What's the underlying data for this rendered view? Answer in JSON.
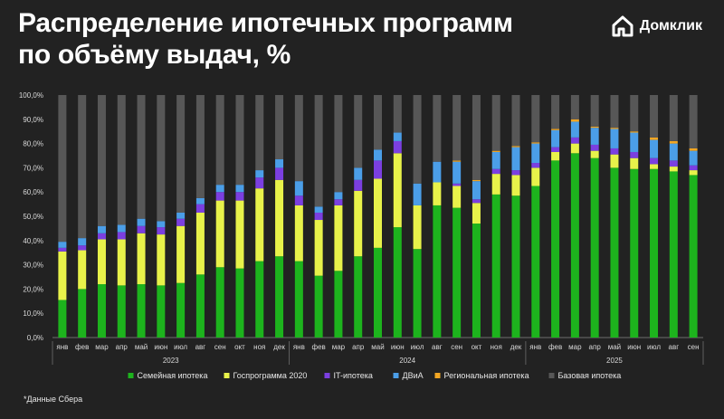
{
  "title_line1": "Распределение ипотечных программ",
  "title_line2": "по объёму выдач, %",
  "brand": "Домклик",
  "footnote": "*Данные Сбера",
  "chart_data": {
    "type": "bar",
    "stacked": true,
    "categories": [
      "янв",
      "фев",
      "мар",
      "апр",
      "май",
      "июн",
      "июл",
      "авг",
      "сен",
      "окт",
      "ноя",
      "дек",
      "янв",
      "фев",
      "мар",
      "апр",
      "май",
      "июн",
      "июл",
      "авг",
      "сен",
      "окт",
      "ноя",
      "дек",
      "янв",
      "фев",
      "мар",
      "апр",
      "май",
      "июн",
      "июл",
      "авг",
      "сен"
    ],
    "year_labels": [
      {
        "label": "2023",
        "from": 0,
        "to": 11
      },
      {
        "label": "2024",
        "from": 12,
        "to": 23
      },
      {
        "label": "2025",
        "from": 24,
        "to": 32
      }
    ],
    "ylim": [
      0,
      100
    ],
    "yticks": [
      "0,0%",
      "10,0%",
      "20,0%",
      "30,0%",
      "40,0%",
      "50,0%",
      "60,0%",
      "70,0%",
      "80,0%",
      "90,0%",
      "100,0%"
    ],
    "legend_position": "bottom",
    "series": [
      {
        "name": "Семейная ипотека",
        "color": "#1db31d",
        "values": [
          15.5,
          20,
          22,
          21.5,
          22,
          21.5,
          22.5,
          26,
          29,
          28.5,
          31.5,
          33.5,
          31.5,
          25.5,
          27.5,
          33.5,
          37,
          45.5,
          36.5,
          54.5,
          53.5,
          47,
          59,
          58.5,
          62.5,
          73,
          76,
          74,
          70,
          69.5,
          69.5,
          68.5,
          67
        ]
      },
      {
        "name": "Госпрограмма 2020",
        "color": "#e8f24a",
        "values": [
          20,
          16,
          18.5,
          19,
          21,
          21,
          23.5,
          25.5,
          27.5,
          28,
          30,
          31.5,
          23,
          23,
          27,
          27,
          28.5,
          30.5,
          18,
          9.5,
          9,
          8.5,
          8.5,
          8.5,
          7.5,
          3.5,
          4,
          3,
          5.5,
          4.5,
          2,
          2,
          2
        ]
      },
      {
        "name": "IT-ипотека",
        "color": "#7b3fe0",
        "values": [
          1.5,
          2,
          2.5,
          3,
          3,
          3,
          3,
          3.5,
          3.5,
          3.5,
          4.5,
          5,
          4,
          3,
          2.5,
          4.5,
          7.5,
          5,
          0,
          0,
          1,
          1.5,
          2,
          2,
          2,
          2,
          2.5,
          2.5,
          2.5,
          2.5,
          2.5,
          2.5,
          2
        ]
      },
      {
        "name": "ДВиА",
        "color": "#4b9ee8",
        "values": [
          2.5,
          3,
          3,
          3,
          3,
          2.5,
          2.5,
          2.5,
          3,
          3,
          3,
          3.5,
          6,
          2.5,
          3,
          5,
          4.5,
          3.5,
          9,
          8.5,
          9,
          7.5,
          7,
          9.5,
          8,
          7,
          6.5,
          7,
          8,
          8,
          7.5,
          7,
          6
        ]
      },
      {
        "name": "Региональная ипотека",
        "color": "#f2a623",
        "values": [
          0,
          0,
          0,
          0,
          0,
          0,
          0,
          0,
          0,
          0,
          0,
          0,
          0,
          0,
          0,
          0,
          0,
          0,
          0,
          0,
          0.5,
          0.5,
          0.5,
          0.5,
          0.5,
          0.5,
          1,
          0.5,
          0.5,
          0.5,
          1,
          1,
          1
        ]
      },
      {
        "name": "Базовая ипотека",
        "color": "#575757",
        "values": [
          60.5,
          59,
          54,
          53.5,
          51,
          52,
          48.5,
          42.5,
          37,
          37,
          31,
          26.5,
          35.5,
          46,
          40,
          30,
          22.5,
          15.5,
          36.5,
          27.5,
          27,
          35,
          23,
          21,
          19.5,
          14,
          10,
          13,
          13.5,
          15,
          17.5,
          19,
          22
        ]
      }
    ]
  }
}
